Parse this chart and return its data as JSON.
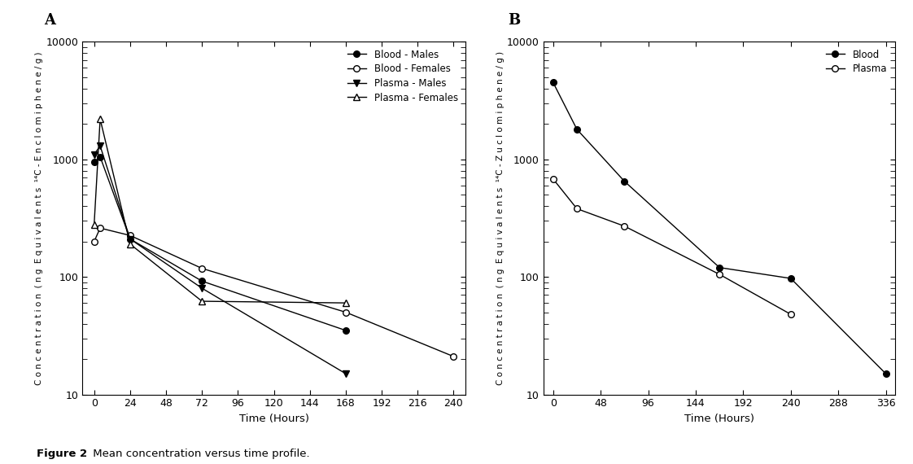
{
  "panel_A": {
    "label": "A",
    "ylabel": "C o n c e n t r a t i o n  ( n g  E q u i v a l e n t s  ¹⁴C - E n c l o m i p h e n e / g )",
    "xlabel": "Time (Hours)",
    "xticks": [
      0,
      24,
      48,
      72,
      96,
      120,
      144,
      168,
      192,
      216,
      240
    ],
    "ylim": [
      10,
      10000
    ],
    "xlim": [
      -8,
      248
    ],
    "series": [
      {
        "label": "Blood - Males",
        "x": [
          0,
          4,
          24,
          72,
          168
        ],
        "y": [
          950,
          1050,
          210,
          92,
          35
        ],
        "marker": "o",
        "fillstyle": "full",
        "color": "black",
        "linestyle": "-"
      },
      {
        "label": "Blood - Females",
        "x": [
          0,
          4,
          24,
          72,
          168,
          240
        ],
        "y": [
          200,
          260,
          225,
          118,
          50,
          21
        ],
        "marker": "o",
        "fillstyle": "none",
        "color": "black",
        "linestyle": "-"
      },
      {
        "label": "Plasma - Males",
        "x": [
          0,
          4,
          24,
          72,
          168
        ],
        "y": [
          1100,
          1300,
          210,
          80,
          15
        ],
        "marker": "v",
        "fillstyle": "full",
        "color": "black",
        "linestyle": "-"
      },
      {
        "label": "Plasma - Females",
        "x": [
          0,
          4,
          24,
          72,
          168
        ],
        "y": [
          280,
          2200,
          190,
          62,
          60
        ],
        "marker": "^",
        "fillstyle": "none",
        "color": "black",
        "linestyle": "-"
      }
    ]
  },
  "panel_B": {
    "label": "B",
    "ylabel": "C o n c e n t r a t i o n  ( n g  E q u i v a l e n t s  ¹⁴C - Z u c l o m i p h e n e / g )",
    "xlabel": "Time (Hours)",
    "xticks": [
      0,
      48,
      96,
      144,
      192,
      240,
      288,
      336
    ],
    "ylim": [
      10,
      10000
    ],
    "xlim": [
      -10,
      345
    ],
    "series": [
      {
        "label": "Blood",
        "x": [
          0,
          24,
          72,
          168,
          240,
          336
        ],
        "y": [
          4500,
          1800,
          650,
          120,
          97,
          15
        ],
        "marker": "o",
        "fillstyle": "full",
        "color": "black",
        "linestyle": "-"
      },
      {
        "label": "Plasma",
        "x": [
          0,
          24,
          72,
          168,
          240
        ],
        "y": [
          680,
          380,
          270,
          105,
          48
        ],
        "marker": "o",
        "fillstyle": "none",
        "color": "black",
        "linestyle": "-"
      }
    ]
  },
  "figure_caption_bold": "Figure 2",
  "figure_caption_normal": " Mean concentration versus time profile.",
  "background_color": "#ffffff"
}
